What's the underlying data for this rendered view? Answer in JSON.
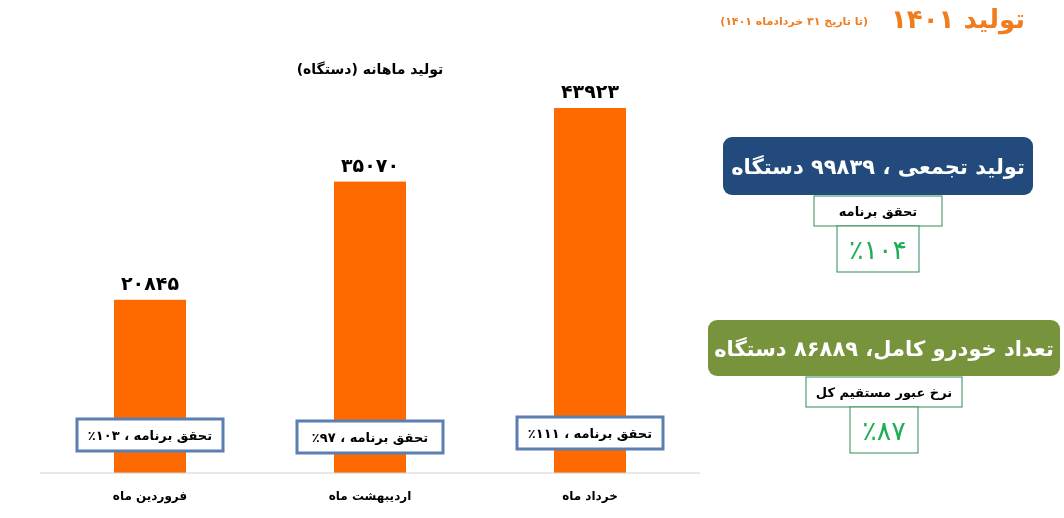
{
  "chart_data": [
    {
      "type": "bar",
      "title": "تولید ماهانه (دستگاه)",
      "categories": [
        "فروردین ماه",
        "اردیبهشت ماه",
        "خرداد ماه"
      ],
      "values": [
        20845,
        35070,
        43923
      ],
      "value_labels": [
        "۲۰۸۴۵",
        "۳۵۰۷۰",
        "۴۳۹۲۳"
      ],
      "color": "#ff6a00",
      "annotations": [
        "تحقق برنامه ، ۱۰۳٪",
        "تحقق برنامه ، ۹۷٪",
        "تحقق برنامه ، ۱۱۱٪"
      ]
    },
    {
      "type": "other",
      "title": "تولید ۱۴۰۱",
      "subtitle": "(تا تاریخ ۳۱ خردادماه ۱۴۰۱)",
      "annotations": [
        "تولید تجمعی ، ۹۹۸۳۹ دستگاه",
        "تحقق برنامه",
        "٪۱۰۴",
        "تعداد خودرو کامل، ۸۶۸۸۹ دستگاه",
        "نرخ عبور مستقیم کل",
        "٪۸۷"
      ]
    }
  ]
}
